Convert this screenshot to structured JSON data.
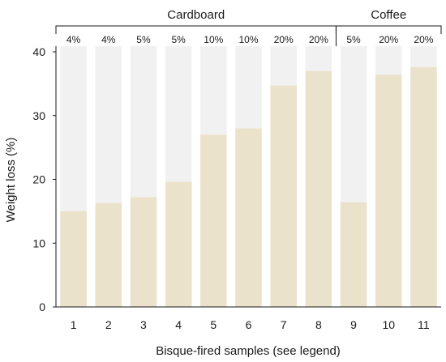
{
  "chart_data": {
    "type": "bar",
    "categories": [
      "1",
      "2",
      "3",
      "4",
      "5",
      "6",
      "7",
      "8",
      "9",
      "10",
      "11"
    ],
    "values": [
      15,
      16.3,
      17.2,
      19.6,
      27,
      28,
      34.7,
      37,
      16.4,
      36.4,
      37.6
    ],
    "percent_labels": [
      "4%",
      "4%",
      "5%",
      "5%",
      "10%",
      "10%",
      "20%",
      "20%",
      "5%",
      "20%",
      "20%"
    ],
    "groups": [
      {
        "label": "Cardboard",
        "start": 0,
        "end": 7
      },
      {
        "label": "Coffee",
        "start": 8,
        "end": 10
      }
    ],
    "xlabel": "Bisque-fired samples (see legend)",
    "ylabel": "Weight loss (%)",
    "ylim": [
      0,
      40
    ],
    "yticks": [
      "0",
      "10",
      "20",
      "30",
      "40"
    ],
    "bar_color": "#ebe2cb",
    "background_bar_color": "#f1f1f1",
    "grid": false
  }
}
